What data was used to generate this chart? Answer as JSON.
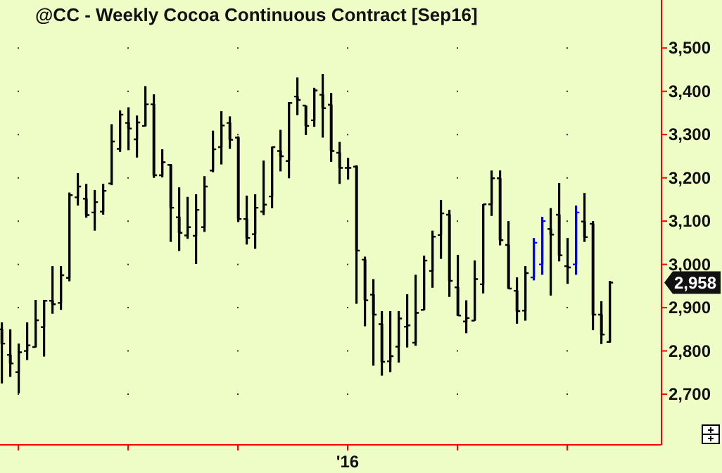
{
  "chart_data": {
    "type": "candlestick",
    "title": "@CC - Weekly  Cocoa Continuous Contract [Sep16]",
    "categories": [
      null,
      null,
      null,
      null,
      null,
      null,
      null,
      null,
      null,
      null,
      null,
      null,
      null,
      null,
      null,
      null,
      null,
      null,
      null,
      null,
      null,
      null,
      null,
      null,
      null,
      null,
      null,
      null,
      null,
      null,
      null,
      null,
      null,
      null,
      null,
      null,
      null,
      null,
      null,
      null,
      null,
      null,
      null,
      null,
      null,
      null,
      null,
      null,
      null,
      null,
      null,
      null,
      null,
      null,
      null,
      null,
      null,
      null,
      null,
      null,
      null,
      null,
      null,
      null,
      null,
      null,
      null,
      null,
      null,
      null,
      null,
      null,
      null
    ],
    "annotations": [
      "'16",
      "2,958"
    ],
    "ohlc": [
      [
        2850,
        2866,
        2725,
        2817
      ],
      [
        2791,
        2850,
        2740,
        2771
      ],
      [
        2751,
        2817,
        2702,
        2797
      ],
      [
        2800,
        2866,
        2779,
        2813
      ],
      [
        2809,
        2918,
        2808,
        2871
      ],
      [
        2855,
        2918,
        2787,
        2916
      ],
      [
        2916,
        2996,
        2886,
        2908
      ],
      [
        2911,
        2996,
        2895,
        2975
      ],
      [
        2969,
        3166,
        2961,
        3160
      ],
      [
        3155,
        3211,
        3136,
        3180
      ],
      [
        3152,
        3186,
        3108,
        3114
      ],
      [
        3120,
        3172,
        3078,
        3144
      ],
      [
        3122,
        3186,
        3115,
        3170
      ],
      [
        3187,
        3324,
        3183,
        3284
      ],
      [
        3267,
        3356,
        3260,
        3346
      ],
      [
        3327,
        3363,
        3264,
        3314
      ],
      [
        3289,
        3344,
        3247,
        3328
      ],
      [
        3320,
        3412,
        3319,
        3370
      ],
      [
        3370,
        3393,
        3200,
        3206
      ],
      [
        3206,
        3266,
        3201,
        3236
      ],
      [
        3230,
        3232,
        3052,
        3131
      ],
      [
        3109,
        3178,
        3031,
        3073
      ],
      [
        3067,
        3156,
        3059,
        3086
      ],
      [
        3066,
        3162,
        3001,
        3126
      ],
      [
        3086,
        3204,
        3075,
        3180
      ],
      [
        3217,
        3309,
        3213,
        3266
      ],
      [
        3271,
        3354,
        3231,
        3321
      ],
      [
        3327,
        3342,
        3267,
        3288
      ],
      [
        3293,
        3296,
        3098,
        3105
      ],
      [
        3105,
        3159,
        3046,
        3061
      ],
      [
        3070,
        3162,
        3036,
        3131
      ],
      [
        3122,
        3240,
        3114,
        3138
      ],
      [
        3157,
        3272,
        3130,
        3271
      ],
      [
        3262,
        3311,
        3215,
        3250
      ],
      [
        3239,
        3375,
        3199,
        3373
      ],
      [
        3388,
        3432,
        3345,
        3380
      ],
      [
        3367,
        3367,
        3299,
        3320
      ],
      [
        3333,
        3408,
        3318,
        3402
      ],
      [
        3392,
        3440,
        3293,
        3361
      ],
      [
        3369,
        3396,
        3237,
        3262
      ],
      [
        3258,
        3283,
        3186,
        3223
      ],
      [
        3223,
        3246,
        3196,
        3223
      ],
      [
        3226,
        3229,
        2909,
        3032
      ],
      [
        3011,
        3018,
        2857,
        2917
      ],
      [
        2930,
        2966,
        2766,
        2884
      ],
      [
        2862,
        2892,
        2743,
        2775
      ],
      [
        2776,
        2892,
        2751,
        2788
      ],
      [
        2810,
        2892,
        2773,
        2875
      ],
      [
        2856,
        2931,
        2808,
        2859
      ],
      [
        2819,
        2976,
        2812,
        2888
      ],
      [
        2895,
        3020,
        2894,
        3009
      ],
      [
        2985,
        3078,
        2946,
        3064
      ],
      [
        3068,
        3149,
        3013,
        3118
      ],
      [
        3115,
        3126,
        2925,
        2962
      ],
      [
        2947,
        3022,
        2881,
        2882
      ],
      [
        2868,
        2917,
        2841,
        2876
      ],
      [
        2870,
        3009,
        2870,
        2966
      ],
      [
        2954,
        3139,
        2933,
        3139
      ],
      [
        3139,
        3217,
        3112,
        3199
      ],
      [
        3199,
        3217,
        3044,
        3056
      ],
      [
        3045,
        3100,
        2944,
        2944
      ],
      [
        2939,
        2970,
        2863,
        2892
      ],
      [
        2893,
        2996,
        2870,
        2980
      ],
      [
        2970,
        3061,
        2963,
        3050
      ],
      [
        3000,
        3110,
        2976,
        3100
      ],
      [
        3082,
        3130,
        2928,
        3069
      ],
      [
        3115,
        3188,
        3007,
        3021
      ],
      [
        2996,
        3061,
        2955,
        2993
      ],
      [
        3000,
        3136,
        2976,
        3120
      ],
      [
        3099,
        3165,
        3052,
        3063
      ],
      [
        3094,
        3100,
        2848,
        2884
      ],
      [
        2884,
        2915,
        2816,
        2838
      ],
      [
        2821,
        2962,
        2819,
        2958
      ]
    ],
    "colors": [
      "#000000",
      "#000000",
      "#000000",
      "#000000",
      "#000000",
      "#000000",
      "#000000",
      "#000000",
      "#000000",
      "#000000",
      "#000000",
      "#000000",
      "#000000",
      "#000000",
      "#000000",
      "#000000",
      "#000000",
      "#000000",
      "#000000",
      "#000000",
      "#000000",
      "#000000",
      "#000000",
      "#000000",
      "#000000",
      "#000000",
      "#000000",
      "#000000",
      "#000000",
      "#000000",
      "#000000",
      "#000000",
      "#000000",
      "#000000",
      "#000000",
      "#000000",
      "#000000",
      "#000000",
      "#000000",
      "#000000",
      "#000000",
      "#000000",
      "#000000",
      "#000000",
      "#000000",
      "#000000",
      "#000000",
      "#000000",
      "#000000",
      "#000000",
      "#000000",
      "#000000",
      "#000000",
      "#000000",
      "#000000",
      "#000000",
      "#000000",
      "#000000",
      "#000000",
      "#000000",
      "#000000",
      "#000000",
      "#000000",
      "#0000ff",
      "#0000ff",
      "#000000",
      "#000000",
      "#000000",
      "#0000ff",
      "#000000",
      "#000000",
      "#000000",
      "#000000"
    ],
    "ylim": [
      2583,
      3611
    ],
    "yticks": [
      {
        "value": 2700,
        "label": "2,700"
      },
      {
        "value": 2800,
        "label": "2,800"
      },
      {
        "value": 2900,
        "label": "2,900"
      },
      {
        "value": 3000,
        "label": "3,000"
      },
      {
        "value": 3100,
        "label": "3,100"
      },
      {
        "value": 3200,
        "label": "3,200"
      },
      {
        "value": 3300,
        "label": "3,300"
      },
      {
        "value": 3400,
        "label": "3,400"
      },
      {
        "value": 3500,
        "label": "3,500"
      }
    ],
    "grid": "y"
  }
}
